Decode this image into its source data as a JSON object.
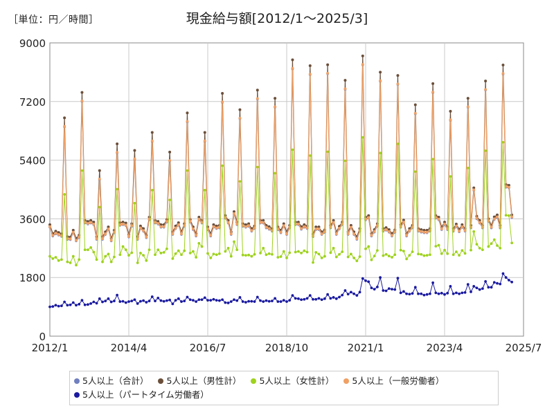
{
  "header": {
    "unit_label": "［単位：円／時間］"
  },
  "chart_data": {
    "type": "line",
    "title": "現金給与額[2012/1～2025/3]",
    "xlabel": "",
    "ylabel": "",
    "ylim": [
      0,
      9000
    ],
    "yticks": [
      0,
      1800,
      3600,
      5400,
      7200,
      9000
    ],
    "xticks": [
      {
        "label": "2012/1",
        "t": 0
      },
      {
        "label": "2014/4",
        "t": 27
      },
      {
        "label": "2016/7",
        "t": 54
      },
      {
        "label": "2018/10",
        "t": 81
      },
      {
        "label": "2021/1",
        "t": 108
      },
      {
        "label": "2023/4",
        "t": 135
      },
      {
        "label": "2025/7",
        "t": 162
      }
    ],
    "grid": true,
    "legend_position": "bottom",
    "series": [
      {
        "name": "5人以上（合計）",
        "color": "#6f7fbf"
      },
      {
        "name": "5人以上（男性計）",
        "color": "#6b4f3a"
      },
      {
        "name": "5人以上（女性計）",
        "color": "#9ed21c"
      },
      {
        "name": "5人以上（一般労働者）",
        "color": "#f0a064"
      },
      {
        "name": "5人以上（パートタイム労働者）",
        "color": "#1a1aa0"
      }
    ],
    "data": {
      "male_total": [
        3420,
        3150,
        3220,
        3180,
        3140,
        6700,
        3050,
        3040,
        3250,
        3000,
        3100,
        7480,
        3550,
        3520,
        3550,
        3500,
        3050,
        5080,
        3050,
        3200,
        3350,
        3000,
        3250,
        5900,
        3480,
        3500,
        3470,
        3120,
        3450,
        5700,
        3050,
        3380,
        3300,
        3100,
        3650,
        6250,
        3550,
        3520,
        3420,
        3420,
        3580,
        5650,
        3200,
        3380,
        3480,
        3200,
        3450,
        6850,
        3580,
        3350,
        3150,
        3650,
        3550,
        6250,
        3350,
        3150,
        3420,
        3380,
        3400,
        7450,
        3700,
        3550,
        3200,
        3820,
        3500,
        6950,
        3450,
        3420,
        3450,
        3300,
        3380,
        7550,
        3550,
        3550,
        3400,
        3360,
        3300,
        7300,
        3350,
        3250,
        3450,
        3200,
        3400,
        8480,
        3500,
        3500,
        3360,
        3420,
        3380,
        8300,
        3130,
        3350,
        3350,
        3200,
        3260,
        8330,
        3400,
        3550,
        3200,
        3370,
        3500,
        7850,
        3200,
        3400,
        3200,
        3050,
        3300,
        8600,
        3650,
        3700,
        3150,
        3270,
        3450,
        8100,
        3300,
        3330,
        3270,
        3150,
        3260,
        8000,
        3420,
        3560,
        3150,
        3300,
        3400,
        7100,
        3300,
        3270,
        3250,
        3250,
        3300,
        7750,
        3700,
        3650,
        3350,
        3500,
        3350,
        6900,
        3300,
        3440,
        3280,
        3420,
        3300,
        7300,
        3400,
        4550,
        3680,
        3550,
        3400,
        7830,
        3600,
        3400,
        3660,
        3720,
        3400,
        8320,
        4650,
        4630,
        3720
      ],
      "female_total": [
        2450,
        2380,
        2420,
        2320,
        2350,
        4350,
        2280,
        2250,
        2450,
        2180,
        2350,
        5080,
        2650,
        2650,
        2720,
        2580,
        2350,
        3960,
        2280,
        2450,
        2520,
        2280,
        2430,
        4510,
        2500,
        2750,
        2650,
        2480,
        2560,
        4080,
        2250,
        2550,
        2480,
        2320,
        2650,
        4480,
        2500,
        2650,
        2550,
        2570,
        2680,
        4180,
        2380,
        2530,
        2620,
        2500,
        2620,
        5080,
        2550,
        2600,
        2420,
        2850,
        2750,
        4480,
        2540,
        2400,
        2520,
        2500,
        2530,
        5230,
        2600,
        2700,
        2450,
        2900,
        2650,
        4750,
        2490,
        2480,
        2490,
        2450,
        2510,
        5190,
        2550,
        2700,
        2500,
        2530,
        2510,
        5000,
        2420,
        2440,
        2600,
        2400,
        2560,
        5720,
        2580,
        2600,
        2550,
        2620,
        2580,
        5540,
        2260,
        2570,
        2520,
        2400,
        2450,
        5660,
        2560,
        2700,
        2430,
        2510,
        2590,
        5380,
        2430,
        2520,
        2400,
        2310,
        2440,
        6100,
        2680,
        2750,
        2340,
        2460,
        2630,
        5620,
        2470,
        2510,
        2460,
        2420,
        2500,
        5900,
        2640,
        2610,
        2370,
        2480,
        2590,
        5050,
        2520,
        2510,
        2470,
        2480,
        2500,
        5430,
        2760,
        2790,
        2530,
        2640,
        2530,
        4900,
        2500,
        2590,
        2480,
        2630,
        2540,
        5160,
        2640,
        3210,
        2820,
        2700,
        2650,
        5690,
        2750,
        2840,
        2960,
        2780,
        2700,
        5950,
        3710,
        3700,
        2860
      ],
      "part_time": [
        900,
        910,
        950,
        920,
        930,
        1050,
        950,
        960,
        1030,
        950,
        980,
        1100,
        960,
        970,
        1000,
        1050,
        1010,
        1150,
        1050,
        1080,
        1150,
        1050,
        1080,
        1260,
        1060,
        1070,
        1030,
        1060,
        1080,
        1120,
        1000,
        1070,
        1090,
        1040,
        1080,
        1210,
        1080,
        1170,
        1090,
        1070,
        1090,
        1110,
        990,
        1100,
        1150,
        1060,
        1080,
        1200,
        1120,
        1100,
        1060,
        1120,
        1120,
        1180,
        1100,
        1100,
        1130,
        1100,
        1090,
        1120,
        1030,
        1020,
        1060,
        1120,
        1090,
        1190,
        1060,
        1040,
        1070,
        1070,
        1060,
        1200,
        1090,
        1060,
        1090,
        1070,
        1080,
        1160,
        1060,
        1060,
        1100,
        1060,
        1100,
        1250,
        1160,
        1150,
        1120,
        1130,
        1160,
        1250,
        1130,
        1130,
        1160,
        1120,
        1150,
        1280,
        1160,
        1190,
        1150,
        1200,
        1260,
        1400,
        1290,
        1350,
        1300,
        1250,
        1350,
        1770,
        1700,
        1670,
        1480,
        1440,
        1510,
        1800,
        1400,
        1390,
        1460,
        1440,
        1430,
        1780,
        1330,
        1370,
        1300,
        1290,
        1310,
        1500,
        1300,
        1300,
        1260,
        1280,
        1300,
        1640,
        1330,
        1300,
        1320,
        1280,
        1320,
        1530,
        1300,
        1330,
        1300,
        1330,
        1340,
        1590,
        1360,
        1530,
        1480,
        1430,
        1460,
        1680,
        1500,
        1500,
        1650,
        1620,
        1600,
        1920,
        1800,
        1720,
        1660
      ]
    }
  }
}
